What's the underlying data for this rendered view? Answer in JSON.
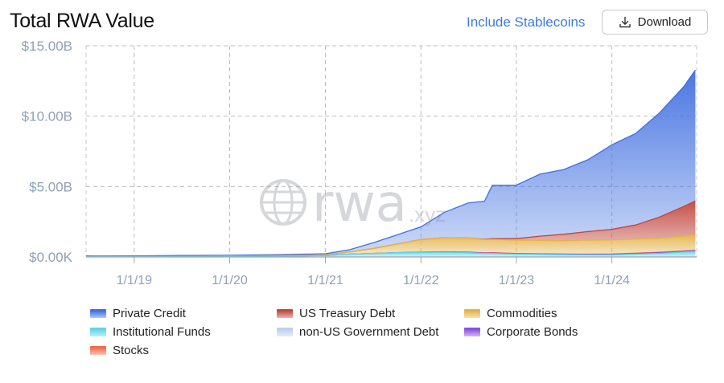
{
  "header": {
    "title": "Total RWA Value",
    "toggle_label": "Include Stablecoins",
    "download_label": "Download"
  },
  "watermark": {
    "text": "rwa",
    "suffix": ".xyz"
  },
  "legend": [
    {
      "name": "Private Credit",
      "color": "#3f6fe0"
    },
    {
      "name": "US Treasury Debt",
      "color": "#c0473e"
    },
    {
      "name": "Commodities",
      "color": "#e4b34a"
    },
    {
      "name": "Institutional Funds",
      "color": "#5fd4e6"
    },
    {
      "name": "non-US Government Debt",
      "color": "#bcd0ee"
    },
    {
      "name": "Corporate Bonds",
      "color": "#8a4fe0"
    },
    {
      "name": "Stocks",
      "color": "#f06a4a"
    }
  ],
  "chart_data": {
    "type": "area",
    "stacked": true,
    "x_ticks": [
      "1/1/19",
      "1/1/20",
      "1/1/21",
      "1/1/22",
      "1/1/23",
      "1/1/24"
    ],
    "y_ticks": [
      "$0.00K",
      "$5.00B",
      "$10.00B",
      "$15.00B"
    ],
    "ylim": [
      0,
      15
    ],
    "y_unit": "B USD",
    "x": [
      "2018-07-01",
      "2019-01-01",
      "2019-07-01",
      "2020-01-01",
      "2020-07-01",
      "2021-01-01",
      "2021-04-01",
      "2021-07-01",
      "2021-10-01",
      "2022-01-01",
      "2022-04-01",
      "2022-07-01",
      "2022-09-01",
      "2022-10-01",
      "2023-01-01",
      "2023-04-01",
      "2023-07-01",
      "2023-10-01",
      "2024-01-01",
      "2024-04-01",
      "2024-07-01",
      "2024-10-01",
      "2024-11-15"
    ],
    "series": [
      {
        "name": "Institutional Funds",
        "color": "#5fd4e6",
        "values": [
          0.02,
          0.03,
          0.04,
          0.05,
          0.07,
          0.1,
          0.2,
          0.25,
          0.3,
          0.32,
          0.34,
          0.3,
          0.25,
          0.25,
          0.2,
          0.18,
          0.16,
          0.15,
          0.15,
          0.2,
          0.25,
          0.35,
          0.4
        ]
      },
      {
        "name": "Corporate Bonds",
        "color": "#8a4fe0",
        "values": [
          0,
          0,
          0,
          0,
          0,
          0,
          0,
          0,
          0,
          0.01,
          0.02,
          0.03,
          0.03,
          0.03,
          0.03,
          0.03,
          0.03,
          0.03,
          0.04,
          0.04,
          0.05,
          0.05,
          0.05
        ]
      },
      {
        "name": "Stocks",
        "color": "#f06a4a",
        "values": [
          0,
          0,
          0,
          0,
          0,
          0,
          0,
          0,
          0.01,
          0.01,
          0.01,
          0.01,
          0.01,
          0.02,
          0.02,
          0.02,
          0.02,
          0.02,
          0.02,
          0.03,
          0.03,
          0.03,
          0.03
        ]
      },
      {
        "name": "Commodities",
        "color": "#e4b34a",
        "values": [
          0,
          0,
          0,
          0.01,
          0.02,
          0.05,
          0.15,
          0.35,
          0.6,
          0.9,
          1.0,
          1.0,
          0.95,
          0.95,
          0.95,
          0.95,
          0.95,
          1.0,
          1.0,
          1.0,
          1.0,
          1.05,
          1.1
        ]
      },
      {
        "name": "US Treasury Debt",
        "color": "#c0473e",
        "values": [
          0,
          0,
          0,
          0,
          0,
          0,
          0,
          0,
          0,
          0,
          0,
          0,
          0.02,
          0.05,
          0.1,
          0.3,
          0.45,
          0.6,
          0.75,
          1.0,
          1.5,
          2.1,
          2.4
        ]
      },
      {
        "name": "non-US Government Debt",
        "color": "#bcd0ee",
        "values": [
          0,
          0,
          0,
          0,
          0,
          0,
          0,
          0,
          0,
          0,
          0,
          0,
          0,
          0,
          0,
          0,
          0,
          0,
          0,
          0,
          0,
          0,
          0
        ]
      },
      {
        "name": "Private Credit",
        "color": "#3f6fe0",
        "values": [
          0.05,
          0.05,
          0.06,
          0.06,
          0.07,
          0.08,
          0.15,
          0.4,
          0.65,
          0.9,
          1.8,
          2.5,
          2.7,
          3.8,
          3.8,
          4.4,
          4.6,
          5.1,
          6.0,
          6.5,
          7.4,
          8.5,
          9.3
        ]
      }
    ]
  }
}
